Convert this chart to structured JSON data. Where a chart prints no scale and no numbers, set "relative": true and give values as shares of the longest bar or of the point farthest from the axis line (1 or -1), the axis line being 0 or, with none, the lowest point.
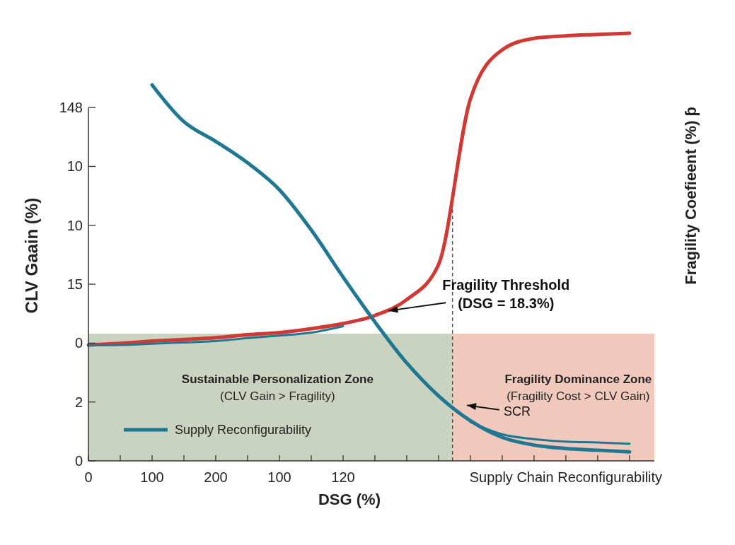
{
  "chart_data": {
    "type": "line",
    "xlabel": "DSG (%)",
    "ylabel": "CLV Gaain (%)",
    "y2label": "Fragility  Coefieent (%) ƥ",
    "relative": true,
    "categories": [
      "0",
      null,
      "100",
      null,
      "200",
      null,
      "100",
      null,
      "120",
      null,
      null,
      null,
      null,
      null,
      null,
      "Supply Chain Reconfigurability",
      null,
      null
    ],
    "legend": "bottom left",
    "line_style": "solid",
    "series": [
      {
        "color": "#d13a34",
        "values": [
          0.271,
          0.275,
          0.28,
          0.284,
          0.288,
          0.295,
          0.3,
          0.309,
          0.321,
          0.34,
          0.377,
          0.459,
          0.846,
          0.961,
          0.988,
          0.994,
          0.997,
          1
        ]
      },
      {
        "name": "Supply Reconfigurability",
        "color": "#1f7892",
        "values": [
          null,
          null,
          0.879,
          0.793,
          0.747,
          0.697,
          0.634,
          0.54,
          0.43,
          0.325,
          0.229,
          0.152,
          0.094,
          0.055,
          0.037,
          0.029,
          0.025,
          0.021
        ]
      },
      {
        "color": "#1f7892",
        "values": [
          0.27,
          0.271,
          0.274,
          0.277,
          0.28,
          0.287,
          0.293,
          0.3,
          0.315,
          null,
          null,
          null,
          null,
          null,
          null,
          null,
          null,
          null
        ]
      },
      {
        "color": "#1f7892",
        "values": [
          null,
          null,
          null,
          null,
          null,
          null,
          null,
          null,
          null,
          null,
          null,
          null,
          0.091,
          0.062,
          0.051,
          0.045,
          0.043,
          0.04
        ]
      }
    ],
    "annotations": [
      "Fragility Threshold\n(DSG = 18.3%)",
      "SCR",
      "Sustainable Personalization Zone\n(CLV Gain > Fragility)",
      "Fragility Dominance Zone\n(Fragility Cost > CLV Gain)",
      "0",
      "2",
      "0",
      "15",
      "10",
      "10",
      "148"
    ]
  }
}
